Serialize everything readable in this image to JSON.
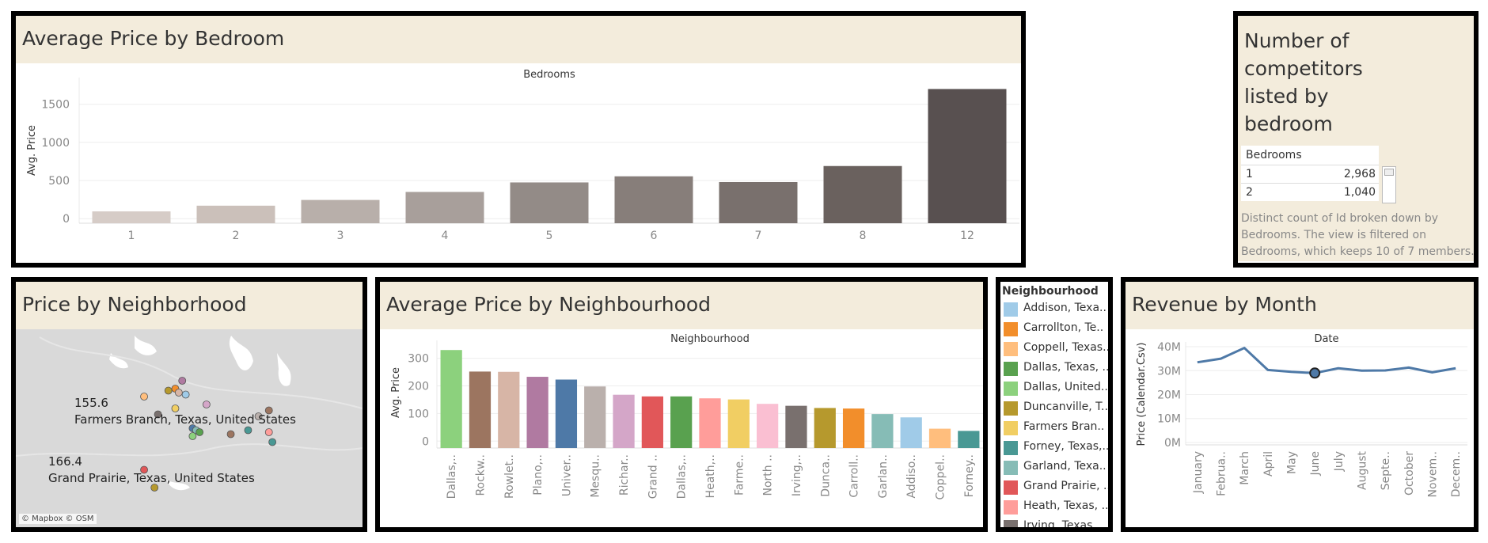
{
  "panels": {
    "bedroom_price": {
      "title": "Average Price by Bedroom"
    },
    "competitors": {
      "title_lines": [
        "Number of",
        "competitors",
        "listed by",
        "bedroom"
      ],
      "table_header": "Bedrooms",
      "rows": [
        {
          "bedroom": "1",
          "count": "2,968"
        },
        {
          "bedroom": "2",
          "count": "1,040"
        }
      ],
      "caption_lines": [
        "Distinct count of Id broken down by",
        "Bedrooms. The view is filtered on",
        "Bedrooms, which keeps 10 of 7 members."
      ]
    },
    "map": {
      "title": "Price by Neighborhood",
      "labels": [
        {
          "value": "155.6",
          "place": "Farmers Branch, Texas, United States"
        },
        {
          "value": "166.4",
          "place": "Grand Prairie, Texas, United States"
        }
      ],
      "attribution": "© Mapbox © OSM"
    },
    "neigh_price": {
      "title": "Average Price by Neighbourhood"
    },
    "legend": {
      "title": "Neighbourhood",
      "items": [
        {
          "label": "Addison, Texa..",
          "color": "#a0cbe8"
        },
        {
          "label": "Carrollton, Te..",
          "color": "#f28e2b"
        },
        {
          "label": "Coppell, Texas..",
          "color": "#ffbe7d"
        },
        {
          "label": "Dallas, Texas, ..",
          "color": "#59a14f"
        },
        {
          "label": "Dallas, United..",
          "color": "#8cd17d"
        },
        {
          "label": "Duncanville, T..",
          "color": "#b6992d"
        },
        {
          "label": "Farmers Bran..",
          "color": "#f1ce63"
        },
        {
          "label": "Forney, Texas,..",
          "color": "#499894"
        },
        {
          "label": "Garland, Texa..",
          "color": "#86bcb6"
        },
        {
          "label": "Grand Prairie, ..",
          "color": "#e15759"
        },
        {
          "label": "Heath, Texas, ..",
          "color": "#ff9d9a"
        },
        {
          "label": "Irving, Texas, ..",
          "color": "#79706e"
        }
      ]
    },
    "revenue": {
      "title": "Revenue by Month"
    }
  },
  "chart_data": [
    {
      "type": "bar",
      "title": "Average Price by Bedroom",
      "xlabel": "Bedrooms",
      "ylabel": "Avg. Price",
      "categories": [
        "1",
        "2",
        "3",
        "4",
        "5",
        "6",
        "7",
        "8",
        "12"
      ],
      "values": [
        95,
        170,
        245,
        350,
        475,
        555,
        480,
        690,
        1700
      ],
      "colors": [
        "#d6ccc7",
        "#cbc0ba",
        "#b8afaa",
        "#a89f9b",
        "#938b87",
        "#877e7a",
        "#79706d",
        "#6a615e",
        "#585050"
      ],
      "yticks": [
        0,
        500,
        1000,
        1500
      ],
      "ylim": [
        -60,
        1850
      ],
      "grid": true
    },
    {
      "type": "bar",
      "title": "Average Price by Neighbourhood",
      "xlabel": "Neighbourhood",
      "ylabel": "Avg. Price",
      "categories": [
        "Dallas,..",
        "Rockw..",
        "Rowlet..",
        "Plano,..",
        "Univer..",
        "Mesqu..",
        "Richar..",
        "Grand ..",
        "Dallas,..",
        "Heath,..",
        "Farme..",
        "North ..",
        "Irving,..",
        "Dunca..",
        "Carroll..",
        "Garlan..",
        "Addiso..",
        "Coppel..",
        "Forney.."
      ],
      "values": [
        330,
        252,
        251,
        233,
        223,
        198,
        168,
        162,
        162,
        155,
        151,
        135,
        128,
        120,
        118,
        98,
        86,
        45,
        37
      ],
      "colors": [
        "#8cd17d",
        "#9c7560",
        "#d7b5a6",
        "#b07aa1",
        "#4e79a7",
        "#bab0ac",
        "#d4a6c8",
        "#e15759",
        "#59a14f",
        "#ff9d9a",
        "#f1ce63",
        "#fabfd2",
        "#79706e",
        "#b6992d",
        "#f28e2b",
        "#86bcb6",
        "#a0cbe8",
        "#ffbe7d",
        "#499894"
      ],
      "yticks": [
        0,
        100,
        200,
        300
      ],
      "ylim": [
        -25,
        365
      ],
      "grid": true
    },
    {
      "type": "line",
      "title": "Revenue by Month",
      "xlabel": "Date",
      "ylabel": "Price (Calendar.Csv)",
      "categories": [
        "January",
        "Februa..",
        "March",
        "April",
        "May",
        "June",
        "July",
        "August",
        "Septe..",
        "October",
        "Novem..",
        "Decem.."
      ],
      "values": [
        33.5,
        35,
        39.5,
        30.3,
        29.5,
        29,
        31,
        30,
        30.1,
        31.3,
        29.3,
        31
      ],
      "highlight_index": 5,
      "yticks": [
        0,
        10,
        20,
        30,
        40
      ],
      "ytick_labels": [
        "0M",
        "10M",
        "20M",
        "30M",
        "40M"
      ],
      "ylim": [
        -1,
        42
      ],
      "color": "#4e79a7",
      "grid": true
    },
    {
      "type": "scatter",
      "title": "Price by Neighborhood",
      "points": [
        {
          "x": 0.37,
          "y": 0.34,
          "color": "#ffbe7d"
        },
        {
          "x": 0.44,
          "y": 0.31,
          "color": "#b6992d"
        },
        {
          "x": 0.46,
          "y": 0.3,
          "color": "#f28e2b"
        },
        {
          "x": 0.47,
          "y": 0.32,
          "color": "#d7b5a6"
        },
        {
          "x": 0.48,
          "y": 0.26,
          "color": "#b07aa1"
        },
        {
          "x": 0.49,
          "y": 0.33,
          "color": "#a0cbe8"
        },
        {
          "x": 0.46,
          "y": 0.4,
          "color": "#f1ce63"
        },
        {
          "x": 0.55,
          "y": 0.38,
          "color": "#d4a6c8"
        },
        {
          "x": 0.41,
          "y": 0.43,
          "color": "#79706e"
        },
        {
          "x": 0.51,
          "y": 0.5,
          "color": "#4e79a7"
        },
        {
          "x": 0.52,
          "y": 0.51,
          "color": "#86bcb6"
        },
        {
          "x": 0.53,
          "y": 0.52,
          "color": "#59a14f"
        },
        {
          "x": 0.51,
          "y": 0.54,
          "color": "#8cd17d"
        },
        {
          "x": 0.62,
          "y": 0.53,
          "color": "#9c7560"
        },
        {
          "x": 0.67,
          "y": 0.51,
          "color": "#499894"
        },
        {
          "x": 0.73,
          "y": 0.52,
          "color": "#ff9d9a"
        },
        {
          "x": 0.74,
          "y": 0.57,
          "color": "#499894"
        },
        {
          "x": 0.73,
          "y": 0.41,
          "color": "#9c7560"
        },
        {
          "x": 0.7,
          "y": 0.44,
          "color": "#bab0ac"
        },
        {
          "x": 0.37,
          "y": 0.71,
          "color": "#e15759"
        },
        {
          "x": 0.4,
          "y": 0.8,
          "color": "#b6992d"
        }
      ]
    }
  ]
}
